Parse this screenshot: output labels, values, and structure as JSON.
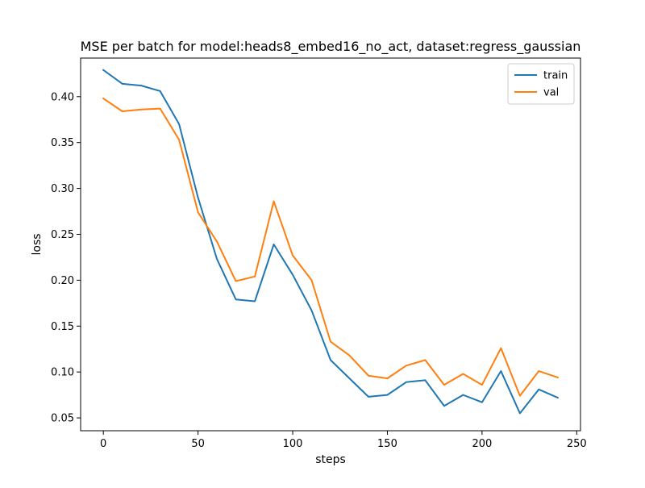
{
  "chart_data": {
    "type": "line",
    "title": "MSE per batch for model:heads8_embed16_no_act, dataset:regress_gaussian",
    "xlabel": "steps",
    "ylabel": "loss",
    "xlim": [
      -12,
      252
    ],
    "ylim": [
      0.036,
      0.442
    ],
    "x_ticks": [
      0,
      50,
      100,
      150,
      200,
      250
    ],
    "x_tick_labels": [
      "0",
      "50",
      "100",
      "150",
      "200",
      "250"
    ],
    "y_ticks": [
      0.05,
      0.1,
      0.15,
      0.2,
      0.25,
      0.3,
      0.35,
      0.4
    ],
    "y_tick_labels": [
      "0.05",
      "0.10",
      "0.15",
      "0.20",
      "0.25",
      "0.30",
      "0.35",
      "0.40"
    ],
    "grid": false,
    "legend_position": "top-right",
    "x": [
      0,
      10,
      20,
      30,
      40,
      50,
      60,
      70,
      80,
      90,
      100,
      110,
      120,
      130,
      140,
      150,
      160,
      170,
      180,
      190,
      200,
      210,
      220,
      230,
      240
    ],
    "series": [
      {
        "name": "train",
        "color": "#1f77b4",
        "values": [
          0.429,
          0.414,
          0.412,
          0.406,
          0.37,
          0.29,
          0.223,
          0.179,
          0.177,
          0.239,
          0.206,
          0.167,
          0.113,
          0.093,
          0.073,
          0.075,
          0.089,
          0.091,
          0.063,
          0.075,
          0.067,
          0.101,
          0.055,
          0.081,
          0.072
        ]
      },
      {
        "name": "val",
        "color": "#ff7f0e",
        "values": [
          0.398,
          0.384,
          0.386,
          0.387,
          0.353,
          0.274,
          0.242,
          0.199,
          0.204,
          0.286,
          0.227,
          0.2,
          0.133,
          0.118,
          0.096,
          0.093,
          0.107,
          0.113,
          0.086,
          0.098,
          0.086,
          0.126,
          0.074,
          0.101,
          0.094
        ]
      }
    ]
  }
}
